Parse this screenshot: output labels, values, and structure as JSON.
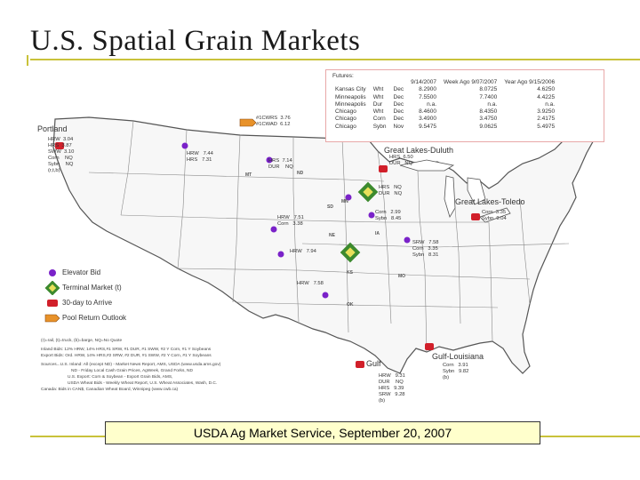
{
  "title": "U.S. Spatial Grain Markets",
  "caption": "USDA Ag Market Service, September 20, 2007",
  "futures": {
    "title": "Futures:",
    "headers": [
      "",
      "",
      "",
      "9/14/2007",
      "Week Ago 9/07/2007",
      "Year Ago 9/15/2006"
    ],
    "rows": [
      [
        "Kansas City",
        "Wht",
        "Dec",
        "8.2900",
        "8.0725",
        "4.6250"
      ],
      [
        "Minneapolis",
        "Wht",
        "Dec",
        "7.5500",
        "7.7400",
        "4.4225"
      ],
      [
        "Minneapolis",
        "Dur",
        "Dec",
        "n.a.",
        "n.a.",
        "n.a."
      ],
      [
        "Chicago",
        "Wht",
        "Dec",
        "8.4600",
        "8.4350",
        "3.9250"
      ],
      [
        "Chicago",
        "Corn",
        "Dec",
        "3.4900",
        "3.4750",
        "2.4175"
      ],
      [
        "Chicago",
        "Sybn",
        "Nov",
        "9.5475",
        "9.0625",
        "5.4975"
      ]
    ]
  },
  "cities": {
    "portland": "Portland",
    "duluth": "Great Lakes-Duluth",
    "toledo": "Great Lakes-Toledo",
    "gulf": "Gulf",
    "gulf_louisiana": "Gulf-Louisiana"
  },
  "states": {
    "mt": "MT",
    "nd": "ND",
    "mn": "MN",
    "sd": "SD",
    "ne": "NE",
    "ia": "IA",
    "ks": "KS",
    "mo": "MO",
    "ok": "OK"
  },
  "bids": {
    "portland": "HRW  3.04\nHRS  3.87\nSWW  3.10\nCorn    NQ\nSybn    NQ\n(r,t,b)",
    "pool": "#1CWRS  3.76\n#1CWAD  6.12",
    "mt": "HRW   7.44\nHRS   7.31",
    "nd": "HRS  7.14\nDUR    NQ",
    "duluth": "HRS  6.50\nDUR   NQ",
    "mn": "HRS   NQ\nDUR   NQ",
    "iowa": "Corn   2.99\nSybn   8.45",
    "toledo": "Corn  3.35\nSybn  9.04",
    "ne": "HRW   7.51\nCorn   3.38",
    "ks": "HRW   7.94",
    "il": "SRW   7.58\nCorn   3.35\nSybn   8.31",
    "ok": "HRW   7.58",
    "gulf_la": "Corn   3.91\nSybn   9.82\n(b)",
    "gulf": "HRW   9.31\nDUR    NQ\nHRS   9.39\nSRW   9.28\n(b)"
  },
  "legend": {
    "elevator": "Elevator Bid",
    "terminal": "Terminal Market (t)",
    "arrive": "30-day to Arrive",
    "pool": "Pool Return Outlook"
  },
  "notes": [
    "(r)=rail, (t)=truck, (b)=barge, NQ=No Quote",
    "Inland Bids: 12% HRW, 14% HRS,#1 SRW, #1 DUR, #1 SWW, #2 Y Corn, #1 Y Soybeans",
    "Export Bids: Ord. HRW, 14% HRS,#2 SRW, #2 DUR, #1 SWW, #2 Y Corn, #1 Y Soybeans",
    "Sources...U.S. Inland: All (except ND) - Market News Report, AMS, USDA (www.usda.ams.gov)",
    "ND - Friday Local Cash Grain Prices, AgWeek, Grand Forks, ND",
    "U.S. Export: Corn & Soybean - Export Grain Bids, AMS,",
    "USDA Wheat Bids - Weekly Wheat Report, U.S. Wheat Associates, Wash, D.C.",
    "Canada: Bids in CAN$, Canadian Wheat Board, Winnipeg (www.cwb.ca)"
  ],
  "colors": {
    "accent": "#c9c23a",
    "caption_bg": "#ffffcc",
    "dot": "#7a22c9",
    "elevator": "#d11f2a",
    "terminal": "#3c8a2e"
  }
}
